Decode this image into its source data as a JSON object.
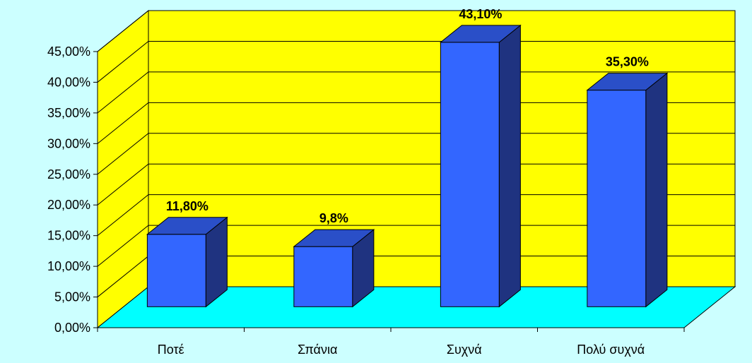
{
  "chart_data": {
    "type": "bar",
    "title": "",
    "xlabel": "",
    "ylabel": "",
    "categories": [
      "Ποτέ",
      "Σπάνια",
      "Συχνά",
      "Πολύ συχνά"
    ],
    "values": [
      11.8,
      9.8,
      43.1,
      35.3
    ],
    "data_labels": [
      "11,80%",
      "9,8%",
      "43,10%",
      "35,30%"
    ],
    "ylim": [
      0,
      45
    ],
    "y_ticks": [
      "0,00%",
      "5,00%",
      "10,00%",
      "15,00%",
      "20,00%",
      "25,00%",
      "30,00%",
      "35,00%",
      "40,00%",
      "45,00%"
    ],
    "grid": true,
    "legend": "none",
    "colors": {
      "background": "#ccffff",
      "wall": "#ffff00",
      "floor": "#00ffff",
      "bar_front": "#3366ff",
      "bar_side": "#1f3380",
      "bar_top": "#2a4fc8"
    }
  }
}
